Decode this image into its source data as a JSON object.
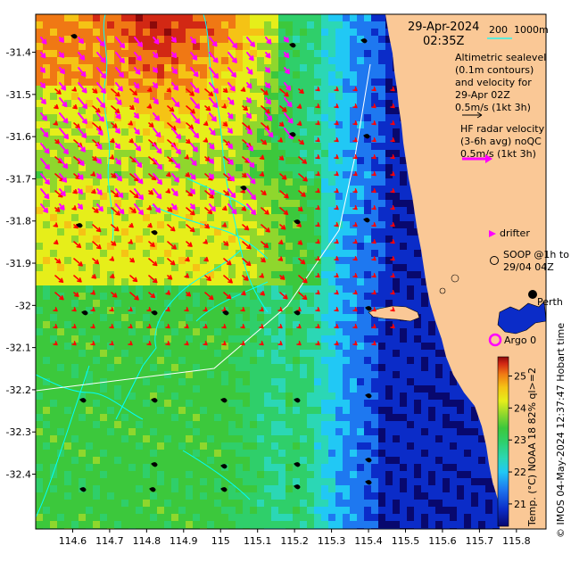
{
  "title": {
    "date": "29-Apr-2024",
    "time": "02:35Z"
  },
  "scale_bar": {
    "label_left": "200",
    "label_right": "1000m"
  },
  "legend": {
    "altimetry_lines": [
      "Altimetric sealevel",
      "(0.1m contours)",
      "and velocity for",
      "29-Apr 02Z",
      "0.5m/s (1kt 3h)"
    ],
    "hf_radar_lines": [
      "HF radar velocity",
      "(3-6h avg) noQC",
      "0.5m/s (1kt 3h)"
    ],
    "drifter_label": "drifter",
    "soop_lines": [
      "SOOP @1h to",
      "29/04 04Z"
    ],
    "city_label": "Perth",
    "argo_label": "Argo 0"
  },
  "colorbar": {
    "label": "Temp. (°C) NOAA 18 82% ql>=2",
    "ticks": [
      "21",
      "22",
      "23",
      "24",
      "25"
    ],
    "min": 20.3,
    "max": 25.6,
    "colors": [
      "#08086e",
      "#0b2cc8",
      "#1e78f0",
      "#21c8f5",
      "#2bd7b5",
      "#2fcf6a",
      "#3cc83c",
      "#8fd72d",
      "#e6ee1a",
      "#f5c315",
      "#f07814",
      "#d22814",
      "#8c0a0a"
    ]
  },
  "credit": "© IMOS 04-May-2024 12:37:47 Hobart time",
  "axes": {
    "x_ticks": [
      "114.6",
      "114.7",
      "114.8",
      "114.9",
      "115",
      "115.1",
      "115.2",
      "115.3",
      "115.4",
      "115.5",
      "115.6",
      "115.7",
      "115.8"
    ],
    "y_ticks": [
      "-31.4",
      "-31.5",
      "-31.6",
      "-31.7",
      "-31.8",
      "-31.9",
      "-32",
      "-32.1",
      "-32.2",
      "-32.3",
      "-32.4"
    ],
    "lon_range": [
      114.5,
      115.88
    ],
    "lat_range": [
      -32.53,
      -31.31
    ]
  },
  "colors": {
    "land": "#fac896",
    "radar_arrow": "#ff00ff",
    "alt_arrow": "#ff0000",
    "contour": "#00ffff",
    "track": "#ffffff"
  }
}
